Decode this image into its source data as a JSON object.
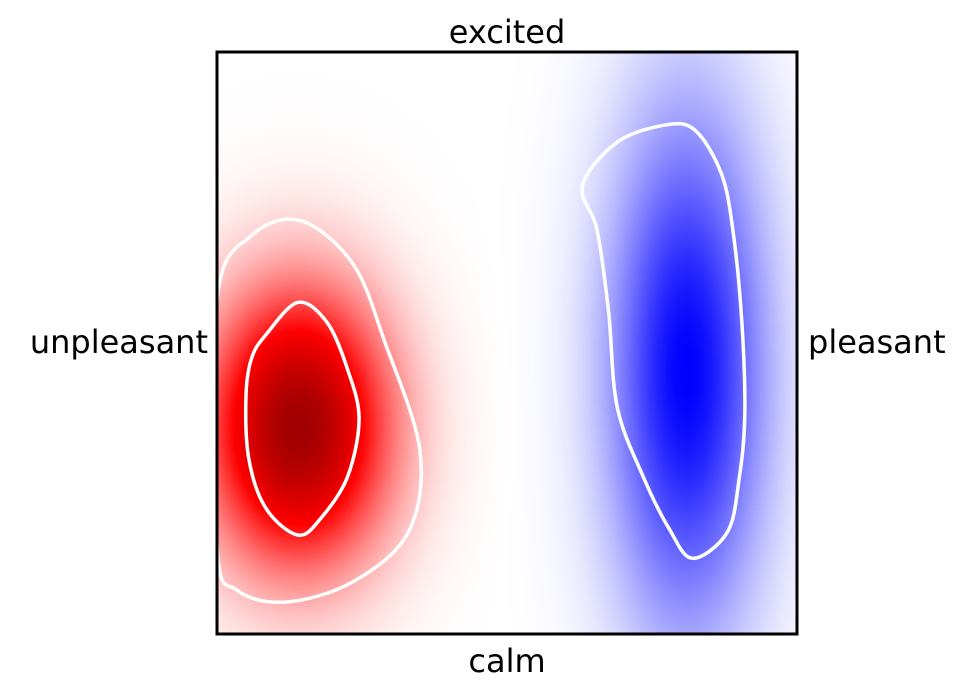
{
  "chart_data": {
    "type": "heatmap",
    "title": "",
    "labels": {
      "top": "excited",
      "bottom": "calm",
      "left": "unpleasant",
      "right": "pleasant"
    },
    "colormap": {
      "negative": "#a00000",
      "mid_negative": "#ff0000",
      "zero": "#ffffff",
      "mid_positive": "#0000ff"
    },
    "x_range": [
      -1,
      1
    ],
    "y_range": [
      -1,
      1
    ],
    "grid": false,
    "ticks": false,
    "regions": [
      {
        "sign": "negative",
        "center": [
          -0.72,
          -0.29
        ],
        "spread": [
          0.22,
          0.33
        ],
        "peak": 1.0
      },
      {
        "sign": "positive",
        "center": [
          0.62,
          -0.1
        ],
        "spread": [
          0.19,
          0.62
        ],
        "peak": 1.0
      }
    ],
    "contours": [
      {
        "region": "unpleasant",
        "level": "outer",
        "points": [
          [
            -1.0,
            0.15
          ],
          [
            -0.88,
            0.37
          ],
          [
            -0.71,
            0.42
          ],
          [
            -0.53,
            0.27
          ],
          [
            -0.42,
            0.0
          ],
          [
            -0.3,
            -0.37
          ],
          [
            -0.34,
            -0.65
          ],
          [
            -0.53,
            -0.82
          ],
          [
            -0.76,
            -0.89
          ],
          [
            -0.93,
            -0.85
          ],
          [
            -1.0,
            -0.7
          ]
        ]
      },
      {
        "region": "unpleasant",
        "level": "inner",
        "points": [
          [
            -0.83,
            0.03
          ],
          [
            -0.72,
            0.14
          ],
          [
            -0.62,
            0.07
          ],
          [
            -0.55,
            -0.09
          ],
          [
            -0.51,
            -0.26
          ],
          [
            -0.55,
            -0.46
          ],
          [
            -0.64,
            -0.6
          ],
          [
            -0.72,
            -0.66
          ],
          [
            -0.83,
            -0.57
          ],
          [
            -0.89,
            -0.4
          ],
          [
            -0.9,
            -0.18
          ],
          [
            -0.88,
            -0.05
          ]
        ]
      },
      {
        "region": "pleasant",
        "level": "outer",
        "points": [
          [
            0.55,
            0.75
          ],
          [
            0.65,
            0.73
          ],
          [
            0.74,
            0.58
          ],
          [
            0.78,
            0.38
          ],
          [
            0.81,
            0.07
          ],
          [
            0.82,
            -0.25
          ],
          [
            0.8,
            -0.47
          ],
          [
            0.76,
            -0.65
          ],
          [
            0.64,
            -0.74
          ],
          [
            0.56,
            -0.64
          ],
          [
            0.47,
            -0.46
          ],
          [
            0.38,
            -0.22
          ],
          [
            0.35,
            0.11
          ],
          [
            0.31,
            0.39
          ],
          [
            0.26,
            0.54
          ],
          [
            0.38,
            0.69
          ]
        ]
      }
    ]
  }
}
